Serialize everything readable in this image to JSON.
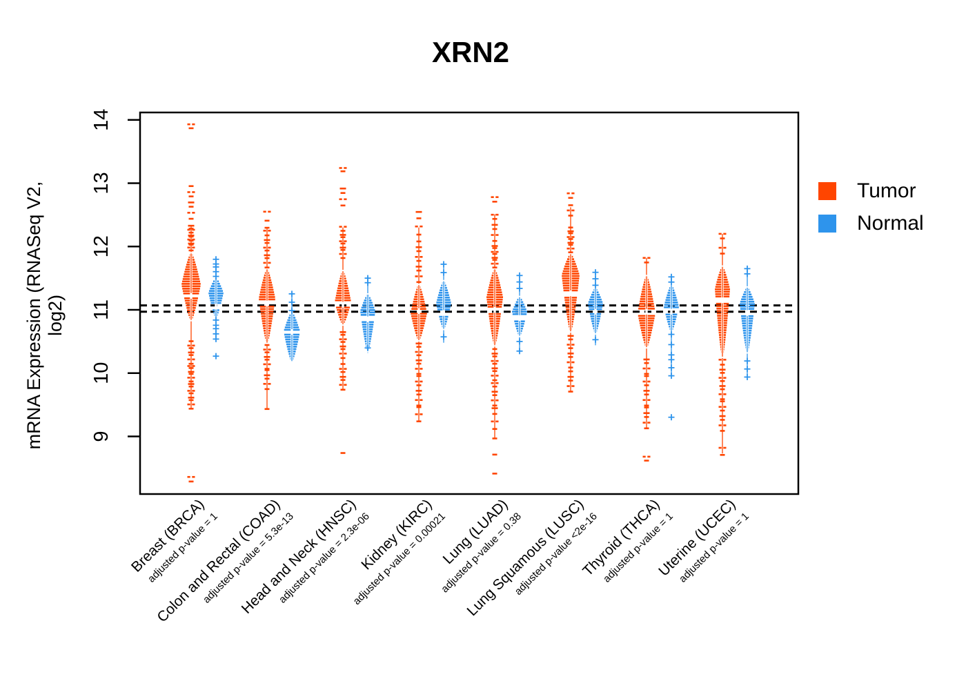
{
  "chart_data": {
    "type": "violin",
    "title": "XRN2",
    "ylabel": "mRNA Expression (RNASeq V2, log2)",
    "xlabel": "",
    "ylim": [
      8.1,
      14.1
    ],
    "yticks": [
      9,
      10,
      11,
      12,
      13,
      14
    ],
    "grid": false,
    "legend_position": "right",
    "legend": [
      {
        "label": "Tumor",
        "color": "#FF4500"
      },
      {
        "label": "Normal",
        "color": "#2E94EC"
      }
    ],
    "reference_lines": {
      "style": "dashed",
      "color": "#000000",
      "values": [
        11.07,
        10.97
      ]
    },
    "groups": [
      {
        "label": "Breast (BRCA)",
        "pvalue_label": "adjusted p-value = 1",
        "code": "brca",
        "tumor": {
          "median": 11.22,
          "bean": [
            10.84,
            11.89
          ],
          "peak": 11.4,
          "halfwidth": 14,
          "stem": [
            9.45,
            12.32
          ],
          "outliers_high": [
            [
              11.95,
              12.32,
              12
            ],
            [
              12.45,
              12.95,
              7
            ],
            [
              13.88,
              13.93,
              2
            ]
          ],
          "outliers_low": [
            [
              10.16,
              10.5,
              7
            ],
            [
              9.88,
              10.12,
              6
            ],
            [
              9.45,
              9.84,
              8
            ],
            [
              8.3,
              8.36,
              2
            ]
          ]
        },
        "normal": {
          "median": 11.05,
          "bean": [
            10.88,
            11.5
          ],
          "peak": 11.27,
          "halfwidth": 11,
          "stem": [
            10.55,
            11.79
          ],
          "outliers_high": [
            [
              11.54,
              11.79,
              5
            ]
          ],
          "outliers_low": [
            [
              10.55,
              10.83,
              5
            ],
            [
              10.28,
              10.28,
              1
            ]
          ]
        }
      },
      {
        "label": "Colon and Rectal (COAD)",
        "pvalue_label": "adjusted p-value = 5.3e-13",
        "code": "coad",
        "tumor": {
          "median": 11.1,
          "bean": [
            10.48,
            11.64
          ],
          "peak": 11.18,
          "halfwidth": 12,
          "stem": [
            9.43,
            12.3
          ],
          "outliers_high": [
            [
              11.68,
              12.3,
              11
            ],
            [
              12.42,
              12.55,
              2
            ]
          ],
          "outliers_low": [
            [
              10.08,
              10.44,
              7
            ],
            [
              9.76,
              10.04,
              5
            ],
            [
              9.43,
              9.46,
              1
            ]
          ]
        },
        "normal": {
          "median": 10.65,
          "bean": [
            10.19,
            10.96
          ],
          "peak": 10.66,
          "halfwidth": 12,
          "stem": [
            10.19,
            11.24
          ],
          "outliers_high": [
            [
              11.0,
              11.24,
              3
            ]
          ],
          "outliers_low": []
        }
      },
      {
        "label": "Head and Neck (HNSC)",
        "pvalue_label": "adjusted p-value = 2.3e-06",
        "code": "hnsc",
        "tumor": {
          "median": 11.08,
          "bean": [
            10.77,
            11.61
          ],
          "peak": 11.12,
          "halfwidth": 12,
          "stem": [
            9.75,
            12.3
          ],
          "outliers_high": [
            [
              11.83,
              12.3,
              10
            ],
            [
              12.66,
              12.92,
              4
            ],
            [
              13.2,
              13.24,
              2
            ]
          ],
          "outliers_low": [
            [
              10.25,
              10.66,
              8
            ],
            [
              9.75,
              10.14,
              7
            ],
            [
              8.73,
              8.77,
              1
            ]
          ]
        },
        "normal": {
          "median": 10.85,
          "bean": [
            10.35,
            11.24
          ],
          "peak": 10.98,
          "halfwidth": 11,
          "stem": [
            10.32,
            11.5
          ],
          "outliers_high": [
            [
              11.44,
              11.5,
              2
            ]
          ],
          "outliers_low": [
            [
              10.4,
              10.42,
              1
            ]
          ]
        }
      },
      {
        "label": "Kidney (KIRC)",
        "pvalue_label": "adjusted p-value = 0.00021",
        "code": "kirc",
        "tumor": {
          "median": 10.98,
          "bean": [
            10.52,
            11.39
          ],
          "peak": 10.95,
          "halfwidth": 12,
          "stem": [
            9.25,
            12.3
          ],
          "outliers_high": [
            [
              11.45,
              12.08,
              9
            ],
            [
              12.2,
              12.55,
              4
            ]
          ],
          "outliers_low": [
            [
              10.0,
              10.48,
              8
            ],
            [
              9.5,
              9.95,
              7
            ],
            [
              9.25,
              9.45,
              3
            ]
          ]
        },
        "normal": {
          "median": 10.95,
          "bean": [
            10.7,
            11.45
          ],
          "peak": 11.1,
          "halfwidth": 11,
          "stem": [
            10.48,
            11.72
          ],
          "outliers_high": [
            [
              11.6,
              11.72,
              2
            ]
          ],
          "outliers_low": [
            [
              10.57,
              10.6,
              1
            ]
          ]
        }
      },
      {
        "label": "Lung (LUAD)",
        "pvalue_label": "adjusted p-value = 0.38",
        "code": "luad",
        "tumor": {
          "median": 11.0,
          "bean": [
            10.44,
            11.64
          ],
          "peak": 11.2,
          "halfwidth": 12,
          "stem": [
            8.98,
            12.51
          ],
          "outliers_high": [
            [
              11.68,
              12.02,
              8
            ],
            [
              12.1,
              12.51,
              6
            ],
            [
              12.72,
              12.78,
              2
            ]
          ],
          "outliers_low": [
            [
              9.9,
              10.38,
              9
            ],
            [
              9.5,
              9.85,
              6
            ],
            [
              9.13,
              9.45,
              4
            ],
            [
              8.96,
              9.0,
              1
            ],
            [
              8.7,
              8.75,
              1
            ],
            [
              8.4,
              8.45,
              1
            ]
          ]
        },
        "normal": {
          "median": 10.87,
          "bean": [
            10.59,
            11.2
          ],
          "peak": 10.97,
          "halfwidth": 11,
          "stem": [
            10.35,
            11.53
          ],
          "outliers_high": [
            [
              11.35,
              11.53,
              3
            ]
          ],
          "outliers_low": [
            [
              10.36,
              10.5,
              2
            ]
          ]
        }
      },
      {
        "label": "Lung Squamous (LUSC)",
        "pvalue_label": "adjusted p-value <2e-16",
        "code": "lusc",
        "tumor": {
          "median": 11.26,
          "bean": [
            10.66,
            11.88
          ],
          "peak": 11.55,
          "halfwidth": 13,
          "stem": [
            9.72,
            12.62
          ],
          "outliers_high": [
            [
              11.92,
              12.3,
              9
            ],
            [
              12.5,
              12.64,
              3
            ],
            [
              12.78,
              12.84,
              2
            ]
          ],
          "outliers_low": [
            [
              10.1,
              10.6,
              8
            ],
            [
              9.72,
              10.02,
              5
            ]
          ]
        },
        "normal": {
          "median": 10.97,
          "bean": [
            10.63,
            11.34
          ],
          "peak": 11.1,
          "halfwidth": 11,
          "stem": [
            10.44,
            11.58
          ],
          "outliers_high": [
            [
              11.4,
              11.58,
              3
            ]
          ],
          "outliers_low": [
            [
              10.52,
              10.56,
              1
            ]
          ]
        }
      },
      {
        "label": "Thyroid (THCA)",
        "pvalue_label": "adjusted p-value = 1",
        "code": "thca",
        "tumor": {
          "median": 10.97,
          "bean": [
            10.41,
            11.53
          ],
          "peak": 10.95,
          "halfwidth": 13,
          "stem": [
            9.14,
            11.82
          ],
          "outliers_high": [
            [
              11.76,
              11.82,
              2
            ]
          ],
          "outliers_low": [
            [
              10.0,
              10.22,
              4
            ],
            [
              9.5,
              9.95,
              7
            ],
            [
              9.14,
              9.45,
              5
            ],
            [
              8.63,
              8.68,
              2
            ]
          ]
        },
        "normal": {
          "median": 10.97,
          "bean": [
            10.66,
            11.39
          ],
          "peak": 11.05,
          "halfwidth": 11,
          "stem": [
            9.97,
            11.52
          ],
          "outliers_high": [
            [
              11.45,
              11.52,
              2
            ]
          ],
          "outliers_low": [
            [
              10.3,
              10.6,
              3
            ],
            [
              9.97,
              10.2,
              3
            ],
            [
              9.3,
              9.33,
              1
            ]
          ]
        }
      },
      {
        "label": "Uterine (UCEC)",
        "pvalue_label": "adjusted p-value = 1",
        "code": "ucec",
        "tumor": {
          "median": 11.15,
          "bean": [
            10.26,
            11.68
          ],
          "peak": 11.33,
          "halfwidth": 11,
          "stem": [
            8.73,
            12.2
          ],
          "outliers_high": [
            [
              11.9,
              11.98,
              2
            ],
            [
              12.14,
              12.2,
              2
            ]
          ],
          "outliers_low": [
            [
              9.6,
              10.2,
              10
            ],
            [
              9.1,
              9.55,
              7
            ],
            [
              8.72,
              8.82,
              2
            ]
          ]
        },
        "normal": {
          "median": 10.95,
          "bean": [
            10.33,
            11.35
          ],
          "peak": 11.1,
          "halfwidth": 11,
          "stem": [
            9.95,
            11.65
          ],
          "outliers_high": [
            [
              11.58,
              11.65,
              2
            ]
          ],
          "outliers_low": [
            [
              9.95,
              10.18,
              3
            ]
          ]
        }
      }
    ]
  }
}
